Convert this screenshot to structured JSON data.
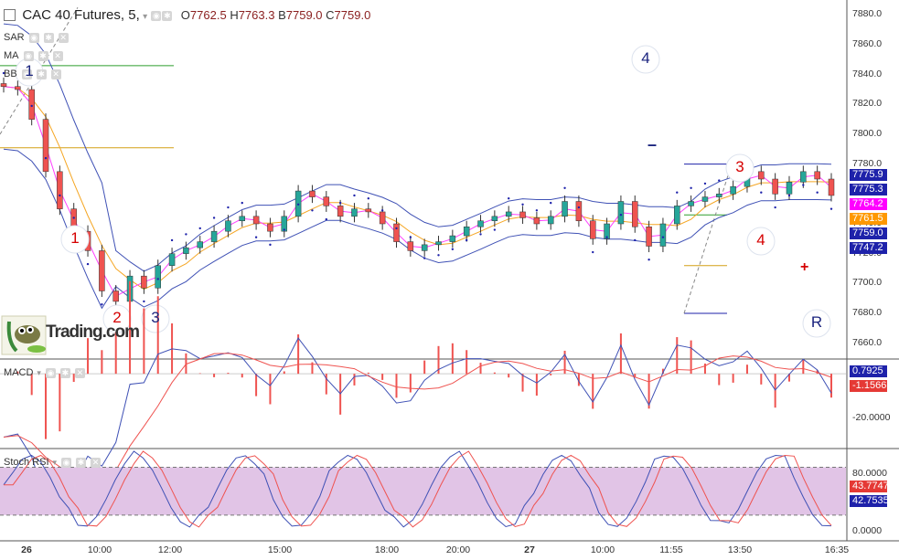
{
  "header": {
    "symbol": "CAC 40 Futures, 5,",
    "o_label": "O",
    "o_value": "7762.5",
    "h_label": "H",
    "h_value": "7763.3",
    "b_label": "B",
    "b_value": "7759.0",
    "c_label": "C",
    "c_value": "7759.0"
  },
  "indicators": [
    "SAR",
    "MA",
    "BB"
  ],
  "logo_text": "Trading.com",
  "annotations": {
    "wave_labels": [
      {
        "text": "1",
        "color": "#1a237e"
      },
      {
        "text": "1",
        "color": "#d50000"
      },
      {
        "text": "2",
        "color": "#d50000"
      },
      {
        "text": "3",
        "color": "#1a237e"
      },
      {
        "text": "4",
        "color": "#1a237e"
      },
      {
        "text": "3",
        "color": "#d50000"
      },
      {
        "text": "4",
        "color": "#d50000"
      },
      {
        "text": "R",
        "color": "#1a237e"
      }
    ],
    "dash": "–",
    "plus": "+"
  },
  "price_axis": {
    "ticks": [
      "7880.0",
      "7860.0",
      "7840.0",
      "7820.0",
      "7800.0",
      "7780.0",
      "7760.0",
      "7740.0",
      "7720.0",
      "7700.0",
      "7680.0",
      "7660.0"
    ],
    "tags": [
      {
        "value": "7775.9",
        "bg": "#1e22aa"
      },
      {
        "value": "7775.3",
        "bg": "#1e22aa"
      },
      {
        "value": "7764.2",
        "bg": "#ff00ff"
      },
      {
        "value": "7761.5",
        "bg": "#ff9800"
      },
      {
        "value": "7759.0",
        "bg": "#1e22aa"
      },
      {
        "value": "7747.2",
        "bg": "#1e22aa"
      }
    ]
  },
  "macd": {
    "name": "MACD",
    "tags": [
      {
        "value": "0.7925",
        "bg": "#1e22aa"
      },
      {
        "value": "-1.1566",
        "bg": "#e53935"
      }
    ],
    "tick": "-20.0000"
  },
  "stoch": {
    "name": "Stoch RSI",
    "tags": [
      {
        "value": "43.7747",
        "bg": "#e53935"
      },
      {
        "value": "42.7535",
        "bg": "#1e22aa"
      }
    ],
    "ticks": [
      "80.0000",
      "0.0000"
    ]
  },
  "time_axis": [
    "26",
    "10:00",
    "12:00",
    "15:00",
    "18:00",
    "20:00",
    "27",
    "10:00",
    "11:55",
    "13:50",
    "16:35"
  ],
  "chart_data": {
    "type": "line",
    "title": "CAC 40 Futures, 5,",
    "price_series": [
      {
        "x": 0,
        "y": 7832
      },
      {
        "x": 1,
        "y": 7830
      },
      {
        "x": 2,
        "y": 7810
      },
      {
        "x": 3,
        "y": 7775
      },
      {
        "x": 4,
        "y": 7750
      },
      {
        "x": 5,
        "y": 7735
      },
      {
        "x": 6,
        "y": 7722
      },
      {
        "x": 7,
        "y": 7695
      },
      {
        "x": 8,
        "y": 7688
      },
      {
        "x": 9,
        "y": 7705
      },
      {
        "x": 10,
        "y": 7697
      },
      {
        "x": 11,
        "y": 7712
      },
      {
        "x": 12,
        "y": 7720
      },
      {
        "x": 13,
        "y": 7724
      },
      {
        "x": 14,
        "y": 7728
      },
      {
        "x": 15,
        "y": 7735
      },
      {
        "x": 16,
        "y": 7742
      },
      {
        "x": 17,
        "y": 7745
      },
      {
        "x": 18,
        "y": 7740
      },
      {
        "x": 19,
        "y": 7735
      },
      {
        "x": 20,
        "y": 7745
      },
      {
        "x": 21,
        "y": 7762
      },
      {
        "x": 22,
        "y": 7758
      },
      {
        "x": 23,
        "y": 7752
      },
      {
        "x": 24,
        "y": 7745
      },
      {
        "x": 25,
        "y": 7750
      },
      {
        "x": 26,
        "y": 7748
      },
      {
        "x": 27,
        "y": 7740
      },
      {
        "x": 28,
        "y": 7728
      },
      {
        "x": 29,
        "y": 7722
      },
      {
        "x": 30,
        "y": 7726
      },
      {
        "x": 31,
        "y": 7728
      },
      {
        "x": 32,
        "y": 7732
      },
      {
        "x": 33,
        "y": 7738
      },
      {
        "x": 34,
        "y": 7742
      },
      {
        "x": 35,
        "y": 7745
      },
      {
        "x": 36,
        "y": 7748
      },
      {
        "x": 37,
        "y": 7744
      },
      {
        "x": 38,
        "y": 7740
      },
      {
        "x": 39,
        "y": 7745
      },
      {
        "x": 40,
        "y": 7755
      },
      {
        "x": 41,
        "y": 7742
      },
      {
        "x": 42,
        "y": 7730
      },
      {
        "x": 43,
        "y": 7740
      },
      {
        "x": 44,
        "y": 7755
      },
      {
        "x": 45,
        "y": 7738
      },
      {
        "x": 46,
        "y": 7725
      },
      {
        "x": 47,
        "y": 7740
      },
      {
        "x": 48,
        "y": 7752
      },
      {
        "x": 49,
        "y": 7755
      },
      {
        "x": 50,
        "y": 7758
      },
      {
        "x": 51,
        "y": 7760
      },
      {
        "x": 52,
        "y": 7765
      },
      {
        "x": 53,
        "y": 7775
      },
      {
        "x": 54,
        "y": 7770
      },
      {
        "x": 55,
        "y": 7760
      },
      {
        "x": 56,
        "y": 7768
      },
      {
        "x": 57,
        "y": 7775
      },
      {
        "x": 58,
        "y": 7770
      },
      {
        "x": 59,
        "y": 7759
      }
    ],
    "ylim": [
      7650,
      7890
    ],
    "macd_range": [
      -30,
      5
    ],
    "stoch_range": [
      -10,
      100
    ]
  }
}
